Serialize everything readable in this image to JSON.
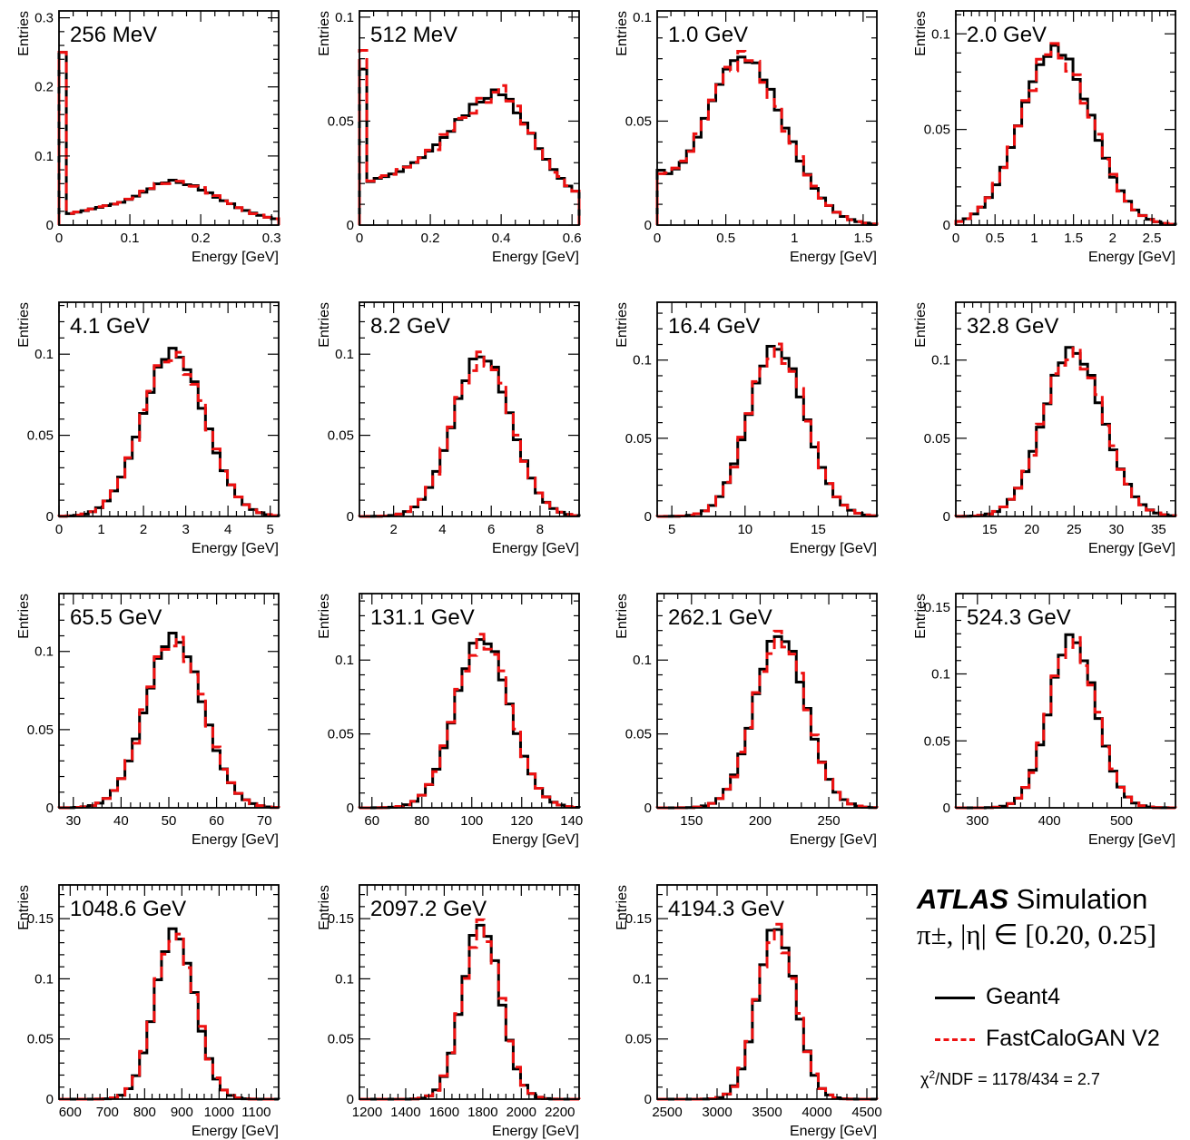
{
  "figure": {
    "atlas_label": "ATLAS",
    "atlas_sublabel": "Simulation",
    "selection_label": "π±, |η| ∈ [0.20, 0.25]",
    "chi2_label": "χ2/NDF = 1178/434 = 2.7",
    "colors": {
      "geant4": "#000000",
      "fastcalogan": "#ee1111"
    }
  },
  "legend": {
    "entries": [
      {
        "name": "Geant4",
        "style": "solid",
        "color": "#000000"
      },
      {
        "name": "FastCaloGAN V2",
        "style": "dashed",
        "color": "#ee1111"
      }
    ]
  },
  "chart_data": [
    {
      "type": "histogram-step",
      "title": "256 MeV",
      "xlabel": "Energy [GeV]",
      "ylabel": "Entries",
      "xlim": [
        0,
        0.31
      ],
      "ylim": [
        0,
        0.31
      ],
      "xticks": [
        {
          "v": 0,
          "t": "0"
        },
        {
          "v": 0.1,
          "t": "0.1"
        },
        {
          "v": 0.2,
          "t": "0.2"
        },
        {
          "v": 0.3,
          "t": "0.3"
        }
      ],
      "yticks": [
        {
          "v": 0,
          "t": "0"
        },
        {
          "v": 0.1,
          "t": "0.1"
        },
        {
          "v": 0.2,
          "t": "0.2"
        },
        {
          "v": 0.3,
          "t": "0.3"
        }
      ],
      "peak_ref": 0.064,
      "shape": "lowE",
      "mu": 0.163,
      "sigma_low": 0.048,
      "sigma_high": 0.065,
      "spike": 0.25,
      "spike_gan": 0.25,
      "floor": 0.015,
      "floor_end": 0.003,
      "plateau": 0.022
    },
    {
      "type": "histogram-step",
      "title": "512 MeV",
      "xlabel": "Energy [GeV]",
      "ylabel": "Entries",
      "xlim": [
        0,
        0.62
      ],
      "ylim": [
        0,
        0.103
      ],
      "xticks": [
        {
          "v": 0,
          "t": "0"
        },
        {
          "v": 0.2,
          "t": "0.2"
        },
        {
          "v": 0.4,
          "t": "0.4"
        },
        {
          "v": 0.6,
          "t": "0.6"
        }
      ],
      "yticks": [
        {
          "v": 0,
          "t": "0"
        },
        {
          "v": 0.05,
          "t": "0.05"
        },
        {
          "v": 0.1,
          "t": "0.1"
        }
      ],
      "peak_ref": 0.064,
      "shape": "lowE2",
      "mu": 0.4,
      "sigma_low": 0.12,
      "sigma_high": 0.095,
      "spike": 0.075,
      "spike_gan": 0.084,
      "floor": 0.02,
      "floor_end": 0.008,
      "plateau": 0.03
    },
    {
      "type": "histogram-step",
      "title": "1.0 GeV",
      "xlabel": "Energy [GeV]",
      "ylabel": "Entries",
      "xlim": [
        0,
        1.6
      ],
      "ylim": [
        0,
        0.103
      ],
      "xticks": [
        {
          "v": 0,
          "t": "0"
        },
        {
          "v": 0.5,
          "t": "0.5"
        },
        {
          "v": 1,
          "t": "1"
        },
        {
          "v": 1.5,
          "t": "1.5"
        }
      ],
      "yticks": [
        {
          "v": 0,
          "t": "0"
        },
        {
          "v": 0.05,
          "t": "0.05"
        },
        {
          "v": 0.1,
          "t": "0.1"
        }
      ],
      "peak_ref": 0.079,
      "shape": "gauss",
      "mu": 0.63,
      "sigma_low": 0.27,
      "sigma_high": 0.3,
      "base": 0.022
    },
    {
      "type": "histogram-step",
      "title": "2.0 GeV",
      "xlabel": "Energy [GeV]",
      "ylabel": "Entries",
      "xlim": [
        0,
        2.8
      ],
      "ylim": [
        0,
        0.112
      ],
      "xticks": [
        {
          "v": 0,
          "t": "0"
        },
        {
          "v": 0.5,
          "t": "0.5"
        },
        {
          "v": 1,
          "t": "1"
        },
        {
          "v": 1.5,
          "t": "1.5"
        },
        {
          "v": 2,
          "t": "2"
        },
        {
          "v": 2.5,
          "t": "2.5"
        }
      ],
      "yticks": [
        {
          "v": 0,
          "t": "0"
        },
        {
          "v": 0.05,
          "t": "0.05"
        },
        {
          "v": 0.1,
          "t": "0.1"
        }
      ],
      "peak_ref": 0.092,
      "shape": "gauss",
      "mu": 1.27,
      "sigma_low": 0.44,
      "sigma_high": 0.46
    },
    {
      "type": "histogram-step",
      "title": "4.1 GeV",
      "xlabel": "Energy [GeV]",
      "ylabel": "Entries",
      "xlim": [
        0,
        5.2
      ],
      "ylim": [
        0,
        0.132
      ],
      "xticks": [
        {
          "v": 0,
          "t": "0"
        },
        {
          "v": 1,
          "t": "1"
        },
        {
          "v": 2,
          "t": "2"
        },
        {
          "v": 3,
          "t": "3"
        },
        {
          "v": 4,
          "t": "4"
        },
        {
          "v": 5,
          "t": "5"
        }
      ],
      "yticks": [
        {
          "v": 0,
          "t": "0"
        },
        {
          "v": 0.05,
          "t": "0.05"
        },
        {
          "v": 0.1,
          "t": "0.1"
        }
      ],
      "peak_ref": 0.102,
      "shape": "gauss",
      "mu": 2.7,
      "sigma_low": 0.72,
      "sigma_high": 0.75
    },
    {
      "type": "histogram-step",
      "title": "8.2 GeV",
      "xlabel": "Energy [GeV]",
      "ylabel": "Entries",
      "xlim": [
        0.6,
        9.6
      ],
      "ylim": [
        0,
        0.132
      ],
      "xticks": [
        {
          "v": 2,
          "t": "2"
        },
        {
          "v": 4,
          "t": "4"
        },
        {
          "v": 6,
          "t": "6"
        },
        {
          "v": 8,
          "t": "8"
        }
      ],
      "yticks": [
        {
          "v": 0,
          "t": "0"
        },
        {
          "v": 0.05,
          "t": "0.05"
        },
        {
          "v": 0.1,
          "t": "0.1"
        }
      ],
      "peak_ref": 0.1,
      "shape": "gauss",
      "mu": 5.6,
      "sigma_low": 1.15,
      "sigma_high": 1.2
    },
    {
      "type": "histogram-step",
      "title": "16.4 GeV",
      "xlabel": "Energy [GeV]",
      "ylabel": "Entries",
      "xlim": [
        4,
        19
      ],
      "ylim": [
        0,
        0.137
      ],
      "xticks": [
        {
          "v": 5,
          "t": "5"
        },
        {
          "v": 10,
          "t": "10"
        },
        {
          "v": 15,
          "t": "15"
        }
      ],
      "yticks": [
        {
          "v": 0,
          "t": "0"
        },
        {
          "v": 0.05,
          "t": "0.05"
        },
        {
          "v": 0.1,
          "t": "0.1"
        }
      ],
      "peak_ref": 0.109,
      "shape": "gauss",
      "mu": 12.1,
      "sigma_low": 1.85,
      "sigma_high": 2.0
    },
    {
      "type": "histogram-step",
      "title": "32.8 GeV",
      "xlabel": "Energy [GeV]",
      "ylabel": "Entries",
      "xlim": [
        11,
        37
      ],
      "ylim": [
        0,
        0.137
      ],
      "xticks": [
        {
          "v": 15,
          "t": "15"
        },
        {
          "v": 20,
          "t": "20"
        },
        {
          "v": 25,
          "t": "25"
        },
        {
          "v": 30,
          "t": "30"
        },
        {
          "v": 35,
          "t": "35"
        }
      ],
      "yticks": [
        {
          "v": 0,
          "t": "0"
        },
        {
          "v": 0.05,
          "t": "0.05"
        },
        {
          "v": 0.1,
          "t": "0.1"
        }
      ],
      "peak_ref": 0.107,
      "shape": "gauss",
      "mu": 24.8,
      "sigma_low": 3.4,
      "sigma_high": 3.6
    },
    {
      "type": "histogram-step",
      "title": "65.5 GeV",
      "xlabel": "Energy [GeV]",
      "ylabel": "Entries",
      "xlim": [
        27,
        73
      ],
      "ylim": [
        0,
        0.137
      ],
      "xticks": [
        {
          "v": 30,
          "t": "30"
        },
        {
          "v": 40,
          "t": "40"
        },
        {
          "v": 50,
          "t": "50"
        },
        {
          "v": 60,
          "t": "60"
        },
        {
          "v": 70,
          "t": "70"
        }
      ],
      "yticks": [
        {
          "v": 0,
          "t": "0"
        },
        {
          "v": 0.05,
          "t": "0.05"
        },
        {
          "v": 0.1,
          "t": "0.1"
        }
      ],
      "peak_ref": 0.11,
      "shape": "gauss",
      "mu": 51,
      "sigma_low": 5.8,
      "sigma_high": 6.1
    },
    {
      "type": "histogram-step",
      "title": "131.1 GeV",
      "xlabel": "Energy [GeV]",
      "ylabel": "Entries",
      "xlim": [
        55,
        143
      ],
      "ylim": [
        0,
        0.145
      ],
      "xticks": [
        {
          "v": 60,
          "t": "60"
        },
        {
          "v": 80,
          "t": "80"
        },
        {
          "v": 100,
          "t": "100"
        },
        {
          "v": 120,
          "t": "120"
        },
        {
          "v": 140,
          "t": "140"
        }
      ],
      "yticks": [
        {
          "v": 0,
          "t": "0"
        },
        {
          "v": 0.05,
          "t": "0.05"
        },
        {
          "v": 0.1,
          "t": "0.1"
        }
      ],
      "peak_ref": 0.116,
      "shape": "gauss",
      "mu": 104,
      "sigma_low": 10.5,
      "sigma_high": 11
    },
    {
      "type": "histogram-step",
      "title": "262.1 GeV",
      "xlabel": "Energy [GeV]",
      "ylabel": "Entries",
      "xlim": [
        125,
        285
      ],
      "ylim": [
        0,
        0.145
      ],
      "xticks": [
        {
          "v": 150,
          "t": "150"
        },
        {
          "v": 200,
          "t": "200"
        },
        {
          "v": 250,
          "t": "250"
        }
      ],
      "yticks": [
        {
          "v": 0,
          "t": "0"
        },
        {
          "v": 0.05,
          "t": "0.05"
        },
        {
          "v": 0.1,
          "t": "0.1"
        }
      ],
      "peak_ref": 0.118,
      "shape": "gauss",
      "mu": 214,
      "sigma_low": 18,
      "sigma_high": 19
    },
    {
      "type": "histogram-step",
      "title": "524.3 GeV",
      "xlabel": "Energy [GeV]",
      "ylabel": "Entries",
      "xlim": [
        270,
        575
      ],
      "ylim": [
        0,
        0.16
      ],
      "xticks": [
        {
          "v": 300,
          "t": "300"
        },
        {
          "v": 400,
          "t": "400"
        },
        {
          "v": 500,
          "t": "500"
        }
      ],
      "yticks": [
        {
          "v": 0,
          "t": "0"
        },
        {
          "v": 0.05,
          "t": "0.05"
        },
        {
          "v": 0.1,
          "t": "0.1"
        },
        {
          "v": 0.15,
          "t": "0.15"
        }
      ],
      "peak_ref": 0.128,
      "shape": "gauss",
      "mu": 431,
      "sigma_low": 31,
      "sigma_high": 33
    },
    {
      "type": "histogram-step",
      "title": "1048.6 GeV",
      "xlabel": "Energy [GeV]",
      "ylabel": "Entries",
      "xlim": [
        570,
        1160
      ],
      "ylim": [
        0,
        0.178
      ],
      "xticks": [
        {
          "v": 600,
          "t": "600"
        },
        {
          "v": 700,
          "t": "700"
        },
        {
          "v": 800,
          "t": "800"
        },
        {
          "v": 900,
          "t": "900"
        },
        {
          "v": 1000,
          "t": "1000"
        },
        {
          "v": 1100,
          "t": "1100"
        }
      ],
      "yticks": [
        {
          "v": 0,
          "t": "0"
        },
        {
          "v": 0.05,
          "t": "0.05"
        },
        {
          "v": 0.1,
          "t": "0.1"
        },
        {
          "v": 0.15,
          "t": "0.15"
        }
      ],
      "peak_ref": 0.14,
      "shape": "gauss",
      "mu": 880,
      "sigma_low": 52,
      "sigma_high": 55
    },
    {
      "type": "histogram-step",
      "title": "2097.2 GeV",
      "xlabel": "Energy [GeV]",
      "ylabel": "Entries",
      "xlim": [
        1160,
        2300
      ],
      "ylim": [
        0,
        0.178
      ],
      "xticks": [
        {
          "v": 1200,
          "t": "1200"
        },
        {
          "v": 1400,
          "t": "1400"
        },
        {
          "v": 1600,
          "t": "1600"
        },
        {
          "v": 1800,
          "t": "1800"
        },
        {
          "v": 2000,
          "t": "2000"
        },
        {
          "v": 2200,
          "t": "2200"
        }
      ],
      "yticks": [
        {
          "v": 0,
          "t": "0"
        },
        {
          "v": 0.05,
          "t": "0.05"
        },
        {
          "v": 0.1,
          "t": "0.1"
        },
        {
          "v": 0.15,
          "t": "0.15"
        }
      ],
      "peak_ref": 0.147,
      "shape": "gauss",
      "mu": 1790,
      "sigma_low": 95,
      "sigma_high": 100
    },
    {
      "type": "histogram-step",
      "title": "4194.3 GeV",
      "xlabel": "Energy [GeV]",
      "ylabel": "Entries",
      "xlim": [
        2400,
        4600
      ],
      "ylim": [
        0,
        0.178
      ],
      "xticks": [
        {
          "v": 2500,
          "t": "2500"
        },
        {
          "v": 3000,
          "t": "3000"
        },
        {
          "v": 3500,
          "t": "3500"
        },
        {
          "v": 4000,
          "t": "4000"
        },
        {
          "v": 4500,
          "t": "4500"
        }
      ],
      "yticks": [
        {
          "v": 0,
          "t": "0"
        },
        {
          "v": 0.05,
          "t": "0.05"
        },
        {
          "v": 0.1,
          "t": "0.1"
        },
        {
          "v": 0.15,
          "t": "0.15"
        }
      ],
      "peak_ref": 0.144,
      "shape": "gauss",
      "mu": 3590,
      "sigma_low": 185,
      "sigma_high": 195
    }
  ]
}
